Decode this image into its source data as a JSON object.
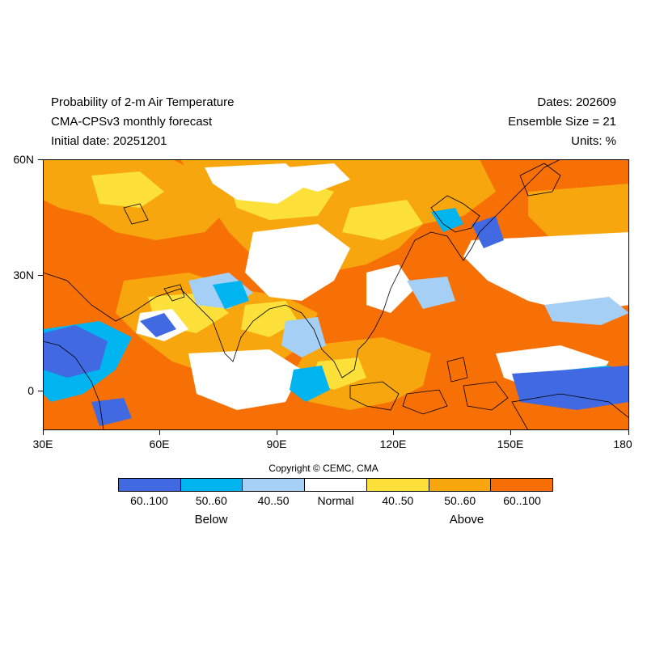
{
  "header": {
    "title_line1": "Probability of 2-m Air Temperature",
    "title_line2": "CMA-CPSv3 monthly forecast",
    "initial_date": "Initial date: 20251201",
    "dates": "Dates: 202609",
    "ensemble_size": "Ensemble Size = 21",
    "units": "Units: %"
  },
  "map": {
    "lon_range": [
      30,
      180
    ],
    "lat_range": [
      -10,
      60
    ],
    "lat_ticks": [
      "60N",
      "30N",
      "0"
    ],
    "lon_ticks": [
      "30E",
      "60E",
      "90E",
      "120E",
      "150E",
      "180"
    ]
  },
  "copyright": "Copyright © CEMC, CMA",
  "legend": {
    "categories": [
      {
        "label": "60..100",
        "color": "#4169e1"
      },
      {
        "label": "50..60",
        "color": "#00b4ef"
      },
      {
        "label": "40..50",
        "color": "#a5cff5"
      },
      {
        "label": "Normal",
        "color": "#ffffff"
      },
      {
        "label": "40..50",
        "color": "#fde13a"
      },
      {
        "label": "50..60",
        "color": "#f7a60e"
      },
      {
        "label": "60..100",
        "color": "#f76e06"
      }
    ],
    "below_label": "Below",
    "above_label": "Above"
  }
}
